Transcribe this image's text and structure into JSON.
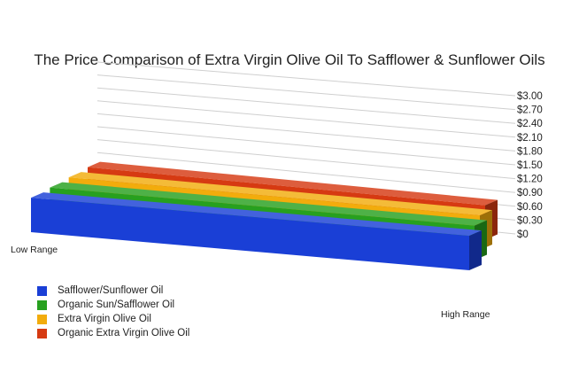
{
  "chart_data": {
    "type": "bar",
    "title": "The Price Comparison of Extra Virgin Olive Oil To Safflower & Sunflower Oils",
    "categories": [
      "Low Range",
      "High Range"
    ],
    "y_ticks": [
      "$0",
      "$0.30",
      "$0.60",
      "$0.90",
      "$1.20",
      "$1.50",
      "$1.80",
      "$2.10",
      "$2.40",
      "$2.70",
      "$3.00"
    ],
    "ylim": [
      0,
      3.0
    ],
    "grid": true,
    "legend_position": "bottom-left",
    "style": "3d",
    "series": [
      {
        "name": "Safflower/Sunflower Oil",
        "color": "#1a3fd6",
        "values": [
          0.75,
          0.75
        ]
      },
      {
        "name": "Organic Sun/Safflower Oil",
        "color": "#27a01f",
        "values": [
          0.75,
          0.75
        ]
      },
      {
        "name": "Extra Virgin Olive Oil",
        "color": "#f2ac0c",
        "values": [
          0.75,
          0.75
        ]
      },
      {
        "name": "Organic Extra Virgin Olive Oil",
        "color": "#d63a12",
        "values": [
          0.75,
          0.75
        ]
      }
    ]
  }
}
